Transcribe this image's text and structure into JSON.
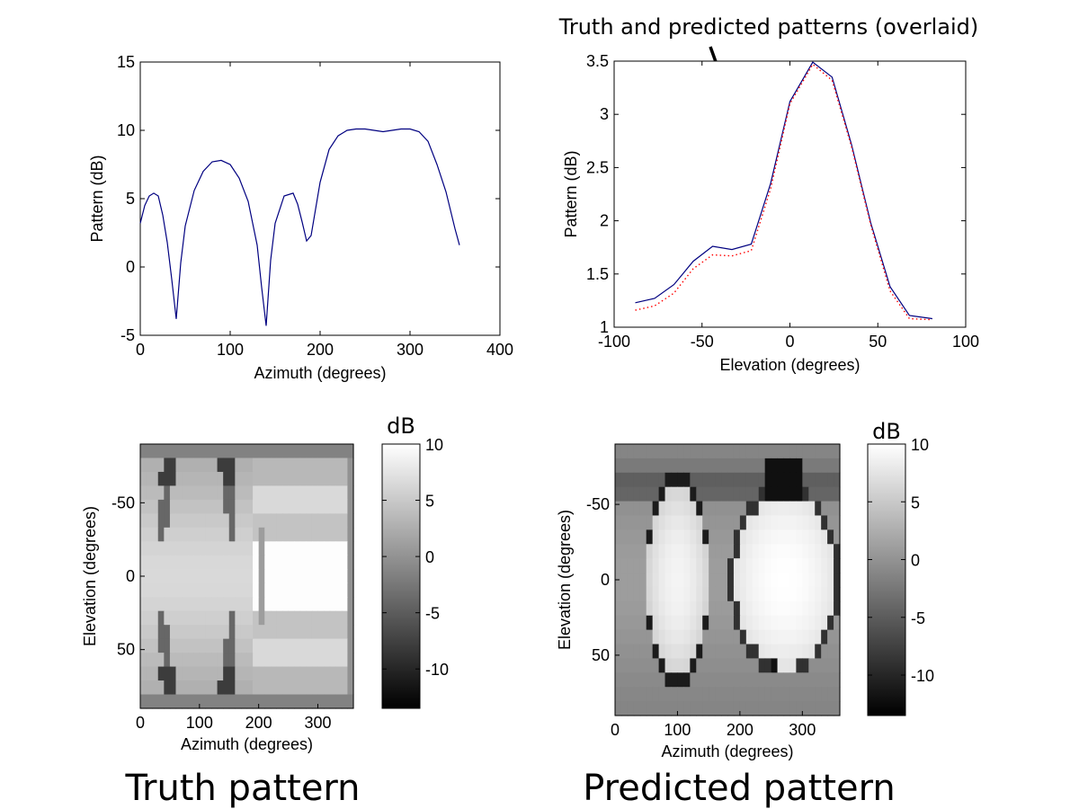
{
  "annotation": "Truth and predicted patterns (overlaid)",
  "captions": {
    "truth": "Truth pattern",
    "predicted": "Predicted pattern"
  },
  "colors": {
    "truth_line": "#000080",
    "predicted_line": "#ff0000",
    "axis": "#000000"
  },
  "chart_data": [
    {
      "id": "azimuth-cut",
      "type": "line",
      "xlabel": "Azimuth (degrees)",
      "ylabel": "Pattern (dB)",
      "xlim": [
        0,
        400
      ],
      "ylim": [
        -5,
        15
      ],
      "xticks": [
        0,
        100,
        200,
        300,
        400
      ],
      "yticks": [
        -5,
        0,
        5,
        10,
        15
      ],
      "series": [
        {
          "color": "#000080",
          "style": "solid",
          "x": [
            0,
            5,
            10,
            15,
            20,
            25,
            30,
            35,
            40,
            45,
            50,
            60,
            70,
            80,
            90,
            100,
            110,
            120,
            130,
            135,
            140,
            145,
            150,
            160,
            170,
            175,
            180,
            185,
            190,
            200,
            210,
            220,
            230,
            240,
            250,
            260,
            270,
            280,
            290,
            300,
            310,
            320,
            330,
            340,
            350,
            355
          ],
          "y": [
            3.2,
            4.5,
            5.2,
            5.4,
            5.2,
            3.8,
            1.8,
            -0.9,
            -3.8,
            0.3,
            3.0,
            5.6,
            7.0,
            7.7,
            7.8,
            7.5,
            6.5,
            4.8,
            1.6,
            -1.5,
            -4.3,
            0.5,
            3.2,
            5.2,
            5.4,
            4.6,
            3.3,
            1.9,
            2.3,
            6.2,
            8.6,
            9.6,
            10.0,
            10.1,
            10.1,
            10.0,
            9.9,
            10.0,
            10.1,
            10.1,
            9.9,
            9.2,
            7.5,
            5.5,
            2.8,
            1.6
          ]
        }
      ]
    },
    {
      "id": "elevation-cut",
      "type": "line",
      "xlabel": "Elevation (degrees)",
      "ylabel": "Pattern (dB)",
      "xlim": [
        -100,
        100
      ],
      "ylim": [
        1,
        3.5
      ],
      "xticks": [
        -100,
        -50,
        0,
        50,
        100
      ],
      "yticks": [
        1,
        1.5,
        2,
        2.5,
        3,
        3.5
      ],
      "series": [
        {
          "color": "#000080",
          "style": "solid",
          "x": [
            -88,
            -77,
            -66,
            -55,
            -44,
            -33,
            -22,
            -11,
            0,
            13,
            24,
            35,
            46,
            57,
            68,
            81
          ],
          "y": [
            1.23,
            1.27,
            1.4,
            1.62,
            1.76,
            1.73,
            1.78,
            2.35,
            3.12,
            3.49,
            3.35,
            2.72,
            1.98,
            1.38,
            1.11,
            1.08
          ]
        },
        {
          "color": "#ff0000",
          "style": "dotted",
          "x": [
            -88,
            -77,
            -66,
            -55,
            -44,
            -33,
            -22,
            -11,
            0,
            13,
            24,
            35,
            46,
            57,
            68,
            81
          ],
          "y": [
            1.16,
            1.2,
            1.32,
            1.55,
            1.68,
            1.67,
            1.72,
            2.3,
            3.1,
            3.47,
            3.32,
            2.7,
            1.96,
            1.34,
            1.08,
            1.07
          ]
        }
      ]
    },
    {
      "id": "truth-heatmap",
      "type": "heatmap",
      "xlabel": "Azimuth (degrees)",
      "ylabel": "Elevation (degrees)",
      "xlim": [
        0,
        360
      ],
      "ylim": [
        -90,
        90
      ],
      "xticks": [
        0,
        100,
        200,
        300
      ],
      "yticks": [
        -50,
        0,
        50
      ],
      "colorbar": {
        "label": "dB",
        "min": -13.5,
        "max": 10,
        "ticks": [
          -10,
          -5,
          0,
          5,
          10
        ]
      }
    },
    {
      "id": "predicted-heatmap",
      "type": "heatmap",
      "xlabel": "Azimuth (degrees)",
      "ylabel": "Elevation (degrees)",
      "xlim": [
        0,
        360
      ],
      "ylim": [
        -90,
        90
      ],
      "xticks": [
        0,
        100,
        200,
        300
      ],
      "yticks": [
        -50,
        0,
        50
      ],
      "colorbar": {
        "label": "dB",
        "min": -13.5,
        "max": 10,
        "ticks": [
          -10,
          -5,
          0,
          5,
          10
        ]
      }
    }
  ]
}
